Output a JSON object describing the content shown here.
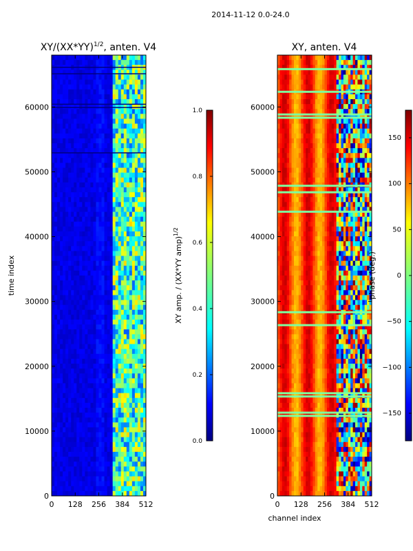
{
  "figure": {
    "suptitle": "2014-11-12 0.0-24.0"
  },
  "colors": {
    "jet": [
      "#00007f",
      "#0000ff",
      "#007fff",
      "#00ffff",
      "#7fff7f",
      "#ffff00",
      "#ff7f00",
      "#ff0000",
      "#7f0000"
    ],
    "stripe": "#7fff9f"
  },
  "chart_data": [
    {
      "type": "heatmap",
      "title": "XY/(XX*YY)^{1/2}, anten. V4",
      "title_main": "XY/(XX*YY)",
      "title_sup": "1/2",
      "title_tail": ", anten. V4",
      "xlabel": "",
      "ylabel": "time index",
      "x_ticks": [
        "0",
        "128",
        "256",
        "384",
        "512"
      ],
      "y_ticks": [
        "0",
        "10000",
        "20000",
        "30000",
        "40000",
        "50000",
        "60000"
      ],
      "xlim": [
        0,
        512
      ],
      "ylim": [
        0,
        68000
      ],
      "colorbar": {
        "label_main": "XY amp. / (XX*YY amp)",
        "label_sup": "1/2",
        "ticks": [
          "0.0",
          "0.2",
          "0.4",
          "0.6",
          "0.8",
          "1.0"
        ],
        "range": [
          0,
          1
        ]
      },
      "colormap": "jet",
      "description_values": {
        "low_channel_level": 0.1,
        "high_channel_level": 0.35,
        "high_channel_start": 330
      }
    },
    {
      "type": "heatmap",
      "title": "XY, anten. V4",
      "xlabel": "channel index",
      "ylabel": "",
      "x_ticks": [
        "0",
        "128",
        "256",
        "384",
        "512"
      ],
      "y_ticks": [
        "0",
        "10000",
        "20000",
        "30000",
        "40000",
        "50000",
        "60000"
      ],
      "xlim": [
        0,
        512
      ],
      "ylim": [
        0,
        68000
      ],
      "colorbar": {
        "label": "phase (deg.)",
        "ticks": [
          "−150",
          "−100",
          "−50",
          "0",
          "50",
          "100",
          "150"
        ],
        "range": [
          -180,
          180
        ]
      },
      "colormap": "jet",
      "description_values": {
        "low_channel_phase": 110,
        "high_channel_phase_spread": [
          -180,
          180
        ]
      }
    }
  ]
}
